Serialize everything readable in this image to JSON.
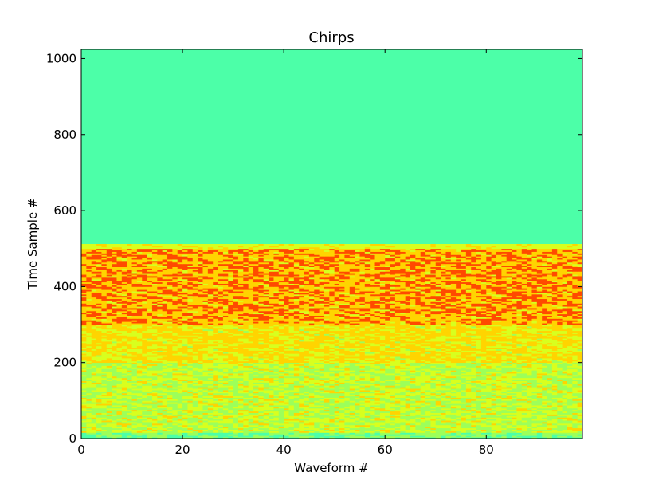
{
  "chart_data": {
    "type": "heatmap",
    "title": "Chirps",
    "xlabel": "Waveform #",
    "ylabel": "Time Sample #",
    "xlim": [
      0,
      99
    ],
    "ylim": [
      0,
      1024
    ],
    "x_ticks": [
      0,
      20,
      40,
      60,
      80
    ],
    "y_ticks": [
      0,
      200,
      400,
      600,
      800,
      1000
    ],
    "n_waveforms": 99,
    "n_time_samples": 1024,
    "signal_end_sample": 512,
    "colormap": "jet",
    "colors": {
      "background_zero": "#4cffa8",
      "low": "#9cff5a",
      "mid": "#ffd400",
      "high": "#ff4a00",
      "yellow_green": "#d8ff1e"
    },
    "bands": [
      {
        "from_sample": 0,
        "to_sample": 200,
        "dominant": "yellow-green / yellow"
      },
      {
        "from_sample": 200,
        "to_sample": 300,
        "dominant": "yellow"
      },
      {
        "from_sample": 300,
        "to_sample": 500,
        "dominant": "orange-red"
      },
      {
        "from_sample": 500,
        "to_sample": 512,
        "dominant": "yellow-green"
      },
      {
        "from_sample": 512,
        "to_sample": 1024,
        "dominant": "zero (green-cyan)"
      }
    ]
  }
}
